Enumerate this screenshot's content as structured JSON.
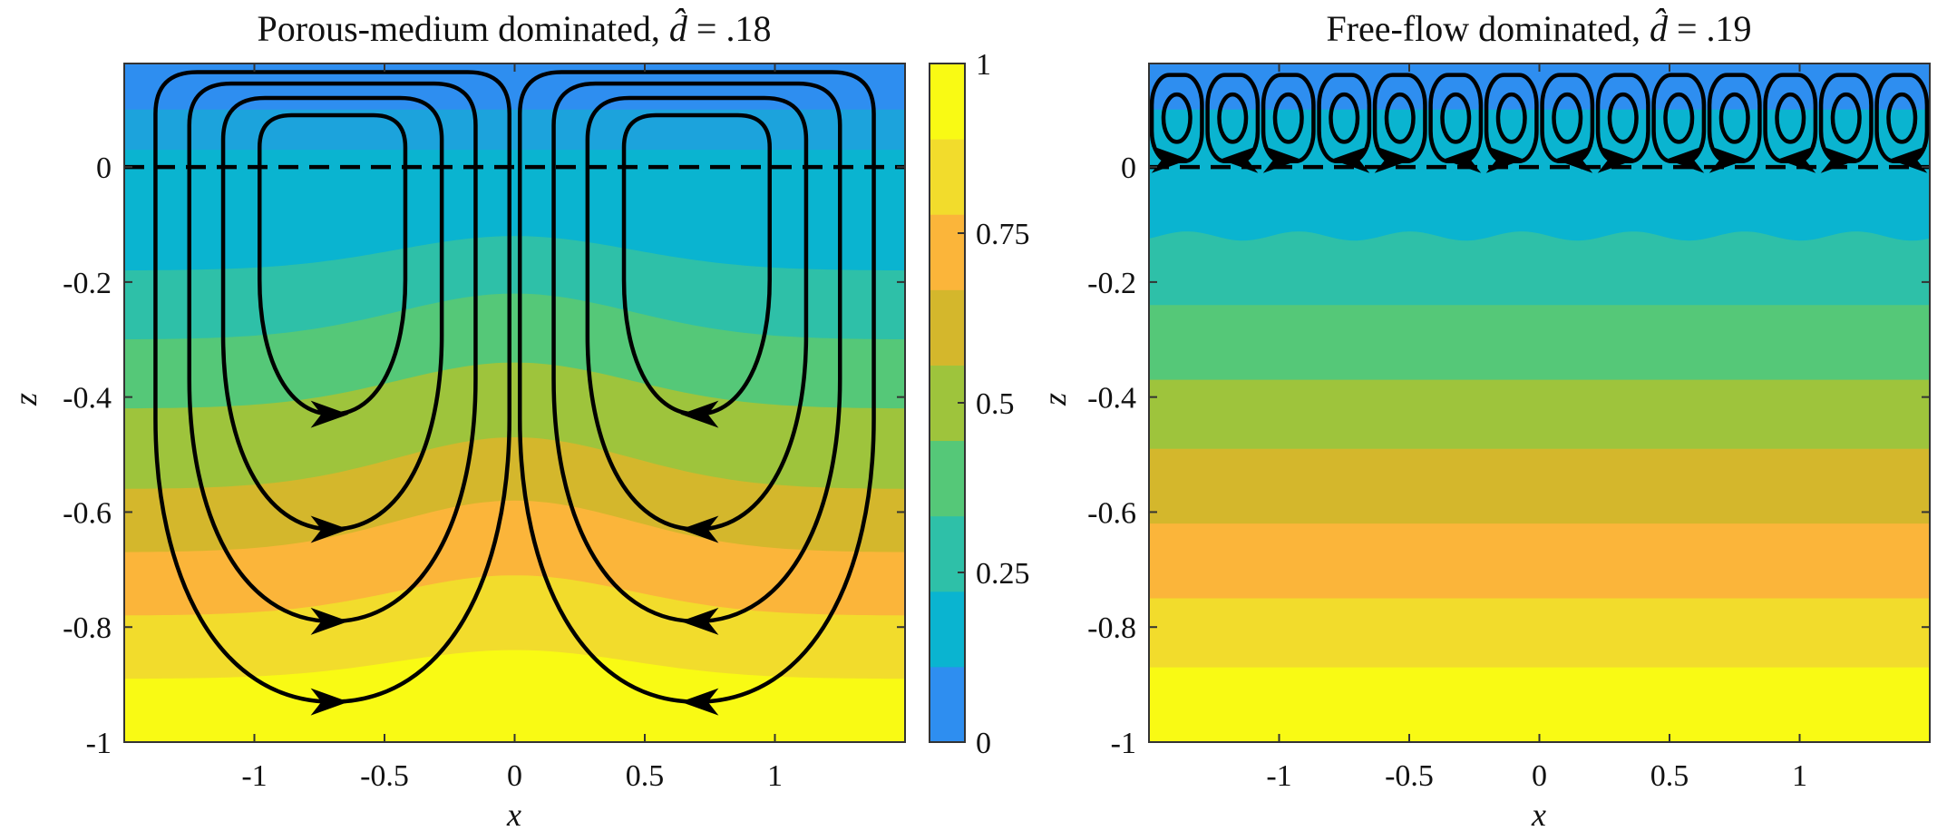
{
  "chart_data": [
    {
      "type": "heatmap",
      "panel": "left",
      "title": "Porous-medium dominated, d̂ = .18",
      "title_parts": {
        "text": "Porous-medium dominated, ",
        "symbol": "d̂",
        "value": " = .18"
      },
      "xlabel": "x",
      "ylabel": "z",
      "xlim": [
        -1.5,
        1.5
      ],
      "ylim": [
        -1,
        0.18
      ],
      "xticks": [
        -1,
        -0.5,
        0,
        0.5,
        1
      ],
      "xtick_labels": [
        "-1",
        "-0.5",
        "0",
        "0.5",
        "1"
      ],
      "yticks": [
        0,
        -0.2,
        -0.4,
        -0.6,
        -0.8,
        -1
      ],
      "ytick_labels": [
        "0",
        "-0.2",
        "-0.4",
        "-0.6",
        "-0.8",
        "-1"
      ],
      "interface_z": 0,
      "field_range": [
        0,
        1
      ],
      "contour_levels": [
        {
          "z_edge": 0.1,
          "color": "#2e8ef0"
        },
        {
          "z_edge": 0.03,
          "color": "#1ca3dc"
        },
        {
          "z_edge": -0.18,
          "color": "#0ab4d0"
        },
        {
          "z_edge": -0.3,
          "color": "#2ec0a8"
        },
        {
          "z_edge": -0.42,
          "color": "#55c878"
        },
        {
          "z_edge": -0.56,
          "color": "#9ec43c"
        },
        {
          "z_edge": -0.67,
          "color": "#d4b72c"
        },
        {
          "z_edge": -0.78,
          "color": "#fbb53a"
        },
        {
          "z_edge": -0.89,
          "color": "#f2dc2c"
        },
        {
          "z_edge": -1.0,
          "color": "#f9fa14"
        }
      ],
      "bulge_amplitude": [
        0,
        0,
        0.06,
        0.08,
        0.08,
        0.09,
        0.09,
        0.07,
        0.05,
        0
      ],
      "bulge_width": 0.45,
      "cells": [
        {
          "x_center": -0.7
        },
        {
          "x_center": 0.7
        }
      ],
      "streamline_half_widths": [
        0.28,
        0.42,
        0.55,
        0.68
      ],
      "streamline_bottoms": [
        -0.43,
        -0.63,
        -0.79,
        -0.93
      ],
      "streamline_tops": [
        0.09,
        0.12,
        0.145,
        0.165
      ]
    },
    {
      "type": "heatmap",
      "panel": "right",
      "title": "Free-flow dominated, d̂ = .19",
      "title_parts": {
        "text": "Free-flow dominated, ",
        "symbol": "d̂",
        "value": " = .19"
      },
      "xlabel": "x",
      "ylabel": "z",
      "xlim": [
        -1.5,
        1.5
      ],
      "ylim": [
        -1,
        0.18
      ],
      "xticks": [
        -1,
        -0.5,
        0,
        0.5,
        1
      ],
      "xtick_labels": [
        "-1",
        "-0.5",
        "0",
        "0.5",
        "1"
      ],
      "yticks": [
        0,
        -0.2,
        -0.4,
        -0.6,
        -0.8,
        -1
      ],
      "ytick_labels": [
        "0",
        "-0.2",
        "-0.4",
        "-0.6",
        "-0.8",
        "-1"
      ],
      "interface_z": 0,
      "field_range": [
        0,
        1
      ],
      "contour_levels": [
        {
          "z_edge": 0.1,
          "color": "#2e8ef0"
        },
        {
          "z_edge": -0.12,
          "color": "#0ab4d0"
        },
        {
          "z_edge": -0.24,
          "color": "#2ec0a8"
        },
        {
          "z_edge": -0.37,
          "color": "#55c878"
        },
        {
          "z_edge": -0.49,
          "color": "#9ec43c"
        },
        {
          "z_edge": -0.62,
          "color": "#d4b72c"
        },
        {
          "z_edge": -0.75,
          "color": "#fbb53a"
        },
        {
          "z_edge": -0.87,
          "color": "#f2dc2c"
        },
        {
          "z_edge": -1.0,
          "color": "#f9fa14"
        }
      ],
      "wave_amplitude": 0.008,
      "roll_count": 14,
      "roll_top": 0.16,
      "roll_bottom": 0.01
    }
  ],
  "colorbar": {
    "range": [
      0,
      1
    ],
    "ticks": [
      0,
      0.25,
      0.5,
      0.75,
      1
    ],
    "tick_labels": [
      "0",
      "0.25",
      "0.5",
      "0.75",
      "1"
    ],
    "colors": [
      "#2e8ef0",
      "#0ab4d0",
      "#2ec0a8",
      "#55c878",
      "#9ec43c",
      "#d4b72c",
      "#fbb53a",
      "#f2dc2c",
      "#f9fa14"
    ]
  }
}
